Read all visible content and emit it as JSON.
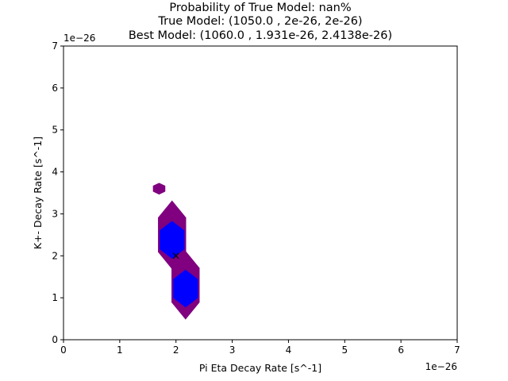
{
  "chart_data": {
    "type": "hexbin_contour",
    "title_lines": [
      "Probability of True Model: nan%",
      "True Model: (1050.0 , 2e-26, 2e-26)",
      "Best Model: (1060.0 , 1.931e-26, 2.4138e-26)"
    ],
    "xlabel": "Pi Eta Decay Rate [s^-1]",
    "ylabel": "K+- Decay Rate [s^-1]",
    "x_offset_label": "1e−26",
    "y_offset_label": "1e−26",
    "xlim": [
      0,
      7
    ],
    "ylim": [
      0,
      7
    ],
    "xticks": [
      0,
      1,
      2,
      3,
      4,
      5,
      6,
      7
    ],
    "yticks": [
      0,
      1,
      2,
      3,
      4,
      5,
      6,
      7
    ],
    "xtick_labels": [
      "0",
      "1",
      "2",
      "3",
      "4",
      "5",
      "6",
      "7"
    ],
    "ytick_labels": [
      "0",
      "1",
      "2",
      "3",
      "4",
      "5",
      "6",
      "7"
    ],
    "grid": false,
    "regions": [
      {
        "level": "outer",
        "color": "#800080",
        "cx": 1.7,
        "cy": 3.6,
        "rx": 0.11,
        "ry": 0.14
      },
      {
        "level": "outer",
        "color": "#800080",
        "cx": 1.93,
        "cy": 2.5,
        "rx": 0.25,
        "ry": 0.82
      },
      {
        "level": "outer",
        "color": "#800080",
        "cx": 2.17,
        "cy": 1.3,
        "rx": 0.25,
        "ry": 0.82
      },
      {
        "level": "inner",
        "color": "#0000ff",
        "cx": 1.93,
        "cy": 2.38,
        "rx": 0.22,
        "ry": 0.45
      },
      {
        "level": "inner",
        "color": "#0000ff",
        "cx": 2.17,
        "cy": 1.22,
        "rx": 0.22,
        "ry": 0.45
      }
    ],
    "true_model_marker": {
      "x": 2.0,
      "y": 2.0,
      "symbol": "x",
      "color": "#000000"
    }
  }
}
